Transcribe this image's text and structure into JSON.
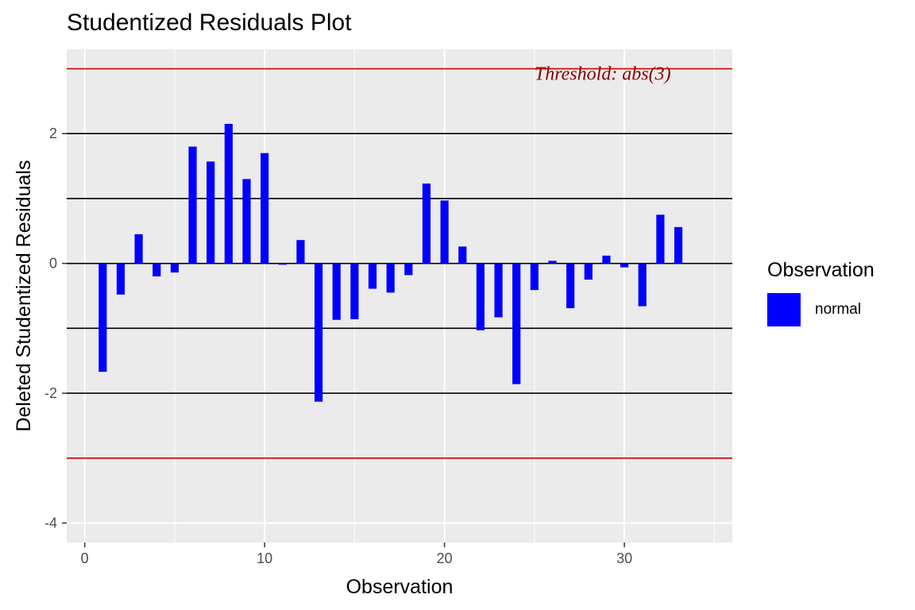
{
  "chart_data": {
    "type": "bar",
    "title": "Studentized Residuals Plot",
    "xlabel": "Observation",
    "ylabel": "Deleted Studentized Residuals",
    "xlim": [
      -1,
      36
    ],
    "ylim": [
      -4.3,
      3.3
    ],
    "x_ticks": [
      0,
      10,
      20,
      30
    ],
    "y_ticks": [
      -4,
      -2,
      0,
      2
    ],
    "bar_color": "#0000FF",
    "panel_background": "#EBEBEB",
    "grid": true,
    "reference_lines": [
      {
        "y": 3,
        "color": "#CC0000"
      },
      {
        "y": -3,
        "color": "#CC0000"
      },
      {
        "y": 2,
        "color": "#000000"
      },
      {
        "y": 1,
        "color": "#000000"
      },
      {
        "y": 0,
        "color": "#000000"
      },
      {
        "y": -1,
        "color": "#000000"
      },
      {
        "y": -2,
        "color": "#000000"
      }
    ],
    "annotation": {
      "text": "Threshold: abs(3)",
      "x": 25,
      "y": 3,
      "color": "#8B0000"
    },
    "legend": {
      "title": "Observation",
      "position": "right",
      "entries": [
        {
          "label": "normal",
          "color": "#0000FF"
        }
      ]
    },
    "x": [
      1,
      2,
      3,
      4,
      5,
      6,
      7,
      8,
      9,
      10,
      11,
      12,
      13,
      14,
      15,
      16,
      17,
      18,
      19,
      20,
      21,
      22,
      23,
      24,
      25,
      26,
      27,
      28,
      29,
      30,
      31,
      32,
      33
    ],
    "values": [
      -1.67,
      -0.48,
      0.45,
      -0.2,
      -0.14,
      1.8,
      1.57,
      2.15,
      1.3,
      1.7,
      -0.02,
      0.36,
      -2.13,
      -0.87,
      -0.86,
      -0.39,
      -0.45,
      -0.18,
      1.23,
      0.97,
      0.26,
      -1.03,
      -0.83,
      -1.86,
      -0.41,
      0.04,
      -0.69,
      -0.25,
      0.12,
      -0.06,
      -0.66,
      0.75,
      0.56
    ]
  }
}
